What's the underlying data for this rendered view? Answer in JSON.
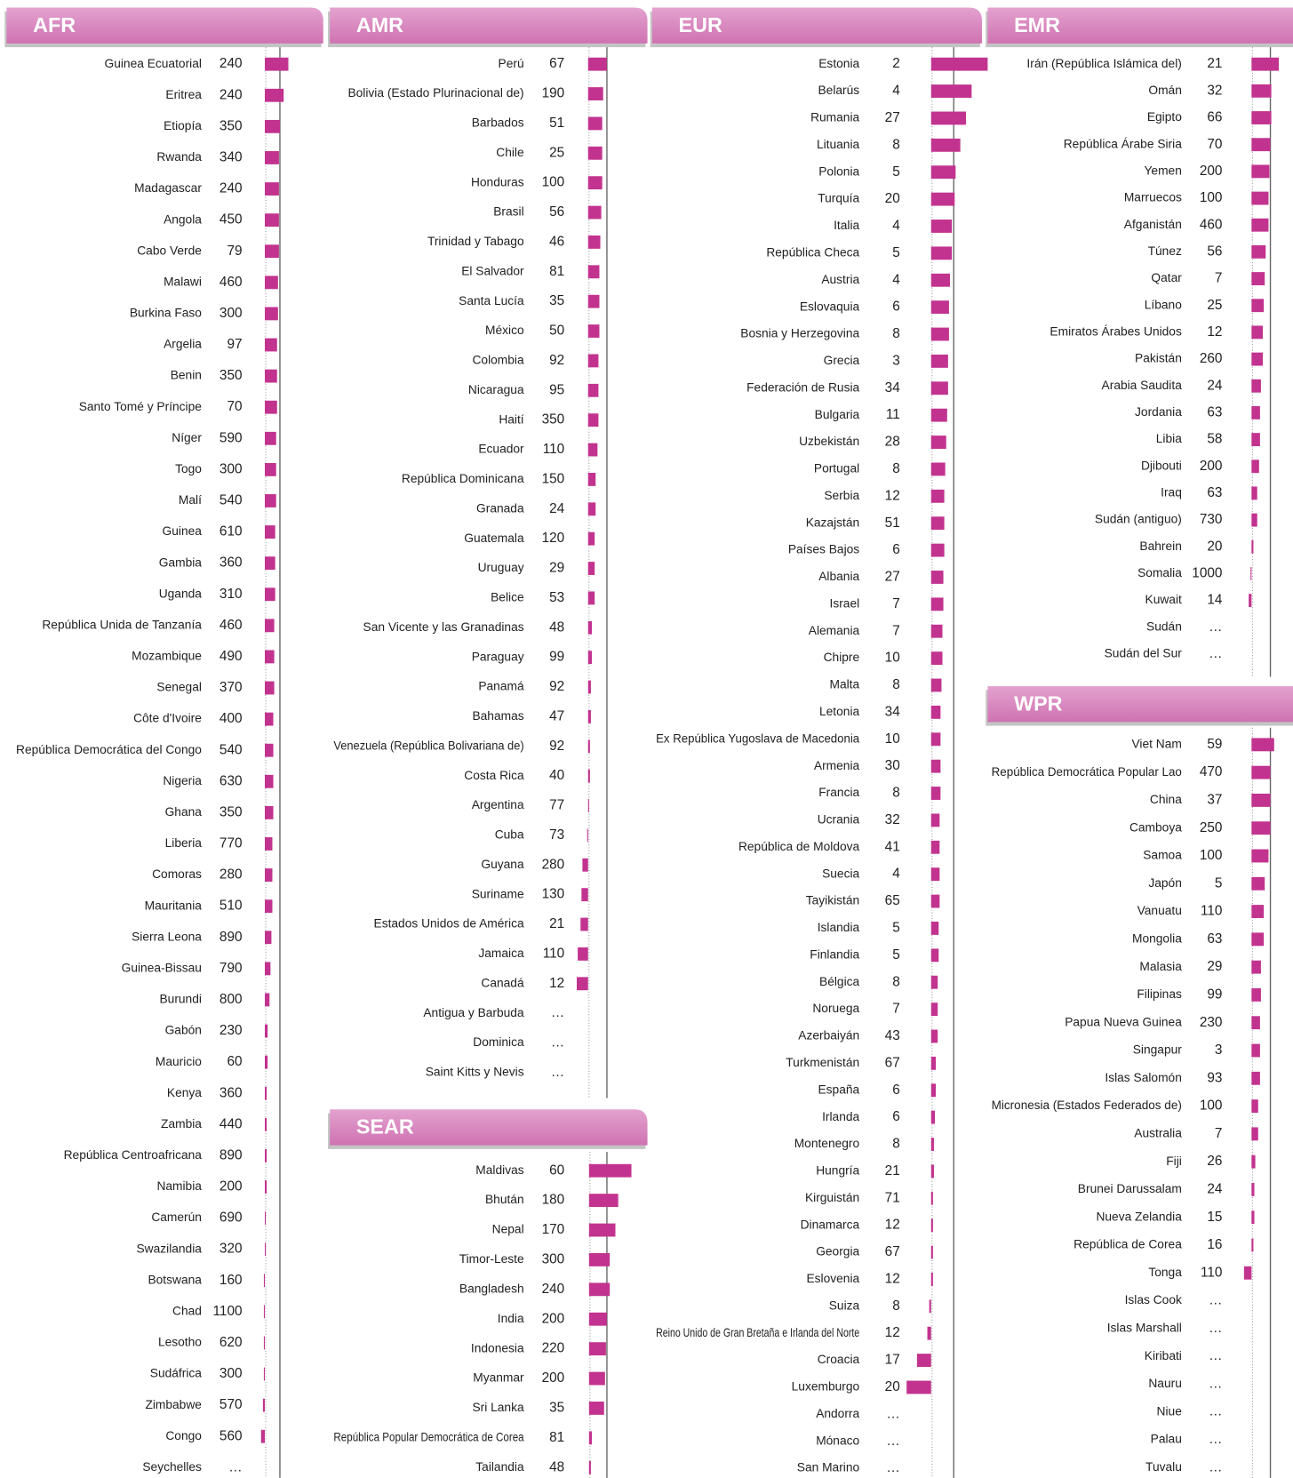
{
  "panels": [
    {
      "title": "AFR",
      "countries": [
        "Guinea Ecuatorial",
        "Eritrea",
        "Etiopía",
        "Rwanda",
        "Madagascar",
        "Angola",
        "Cabo Verde",
        "Malawi",
        "Burkina Faso",
        "Argelia",
        "Benin",
        "Santo Tomé y Príncipe",
        "Níger",
        "Togo",
        "Malí",
        "Guinea",
        "Gambia",
        "Uganda",
        "República Unida de Tanzanía",
        "Mozambique",
        "Senegal",
        "Côte d'Ivoire",
        "República Democrática del Congo",
        "Nigeria",
        "Ghana",
        "Liberia",
        "Comoras",
        "Mauritania",
        "Sierra Leona",
        "Guinea-Bissau",
        "Burundi",
        "Gabón",
        "Mauricio",
        "Kenya",
        "Zambia",
        "República Centroafricana",
        "Namibia",
        "Camerún",
        "Swazilandia",
        "Botswana",
        "Chad",
        "Lesotho",
        "Sudáfrica",
        "Zimbabwe",
        "Congo",
        "Seychelles"
      ],
      "values": [
        240,
        240,
        350,
        340,
        240,
        450,
        79,
        460,
        300,
        97,
        350,
        70,
        590,
        300,
        540,
        610,
        360,
        310,
        460,
        490,
        370,
        400,
        540,
        630,
        350,
        770,
        280,
        510,
        890,
        790,
        800,
        230,
        60,
        360,
        440,
        890,
        200,
        690,
        320,
        160,
        1100,
        620,
        300,
        570,
        560,
        "…"
      ],
      "bars": [
        25,
        20,
        16,
        15,
        15,
        15,
        15,
        14,
        14,
        13,
        13,
        13,
        12,
        12,
        12,
        11,
        11,
        11,
        10,
        10,
        10,
        9,
        9,
        9,
        9,
        8,
        8,
        8,
        7,
        6,
        5,
        3,
        3,
        2,
        2,
        2,
        2,
        1,
        1,
        -1,
        -1,
        -1,
        -1,
        -2,
        -4,
        null
      ]
    },
    {
      "title": "AMR",
      "countries": [
        "Perú",
        "Bolivia (Estado Plurinacional de)",
        "Barbados",
        "Chile",
        "Honduras",
        "Brasil",
        "Trinidad y Tabago",
        "El Salvador",
        "Santa Lucía",
        "México",
        "Colombia",
        "Nicaragua",
        "Haití",
        "Ecuador",
        "República Dominicana",
        "Granada",
        "Guatemala",
        "Uruguay",
        "Belice",
        "San Vicente y las Granadinas",
        "Paraguay",
        "Panamá",
        "Bahamas",
        "Venezuela (República Bolivariana de)",
        "Costa Rica",
        "Argentina",
        "Cuba",
        "Guyana",
        "Suriname",
        "Estados Unidos de América",
        "Jamaica",
        "Canadá",
        "Antigua y Barbuda",
        "Dominica",
        "Saint Kitts y Nevis"
      ],
      "values": [
        67,
        190,
        51,
        25,
        100,
        56,
        46,
        81,
        35,
        50,
        92,
        95,
        350,
        110,
        150,
        24,
        120,
        29,
        53,
        48,
        99,
        92,
        47,
        92,
        40,
        77,
        73,
        280,
        130,
        21,
        110,
        12,
        "…",
        "…",
        "…"
      ],
      "bars": [
        20,
        16,
        15,
        15,
        15,
        14,
        13,
        12,
        12,
        12,
        11,
        11,
        11,
        10,
        8,
        8,
        7,
        7,
        7,
        4,
        4,
        3,
        3,
        2,
        2,
        1,
        -1,
        -6,
        -7,
        -8,
        -11,
        -12,
        null,
        null,
        null
      ]
    },
    {
      "title": "EUR",
      "countries": [
        "Estonia",
        "Belarús",
        "Rumania",
        "Lituania",
        "Polonia",
        "Turquía",
        "Italia",
        "República Checa",
        "Austria",
        "Eslovaquia",
        "Bosnia y Herzegovina",
        "Grecia",
        "Federación de Rusia",
        "Bulgaria",
        "Uzbekistán",
        "Portugal",
        "Serbia",
        "Kazajstán",
        "Países Bajos",
        "Albania",
        "Israel",
        "Alemania",
        "Chipre",
        "Malta",
        "Letonia",
        "Ex República Yugoslava de Macedonia",
        "Armenia",
        "Francia",
        "Ucrania",
        "República de Moldova",
        "Suecia",
        "Tayikistán",
        "Islandia",
        "Finlandia",
        "Bélgica",
        "Noruega",
        "Azerbaiyán",
        "Turkmenistán",
        "España",
        "Irlanda",
        "Montenegro",
        "Hungría",
        "Kirguistán",
        "Dinamarca",
        "Georgia",
        "Eslovenia",
        "Suiza",
        "Reino Unido de Gran Bretaña e Irlanda del Norte",
        "Croacia",
        "Luxemburgo",
        "Andorra",
        "Mónaco",
        "San Marino"
      ],
      "values": [
        2,
        4,
        27,
        8,
        5,
        20,
        4,
        5,
        4,
        6,
        8,
        3,
        34,
        11,
        28,
        8,
        12,
        51,
        6,
        27,
        7,
        7,
        10,
        8,
        34,
        10,
        30,
        8,
        32,
        41,
        4,
        65,
        5,
        5,
        8,
        7,
        43,
        67,
        6,
        6,
        8,
        21,
        71,
        12,
        67,
        12,
        8,
        12,
        17,
        20,
        "…",
        "…",
        "…"
      ],
      "bars": [
        60,
        43,
        37,
        31,
        26,
        25,
        22,
        22,
        20,
        19,
        19,
        18,
        18,
        17,
        16,
        15,
        14,
        14,
        14,
        13,
        13,
        12,
        12,
        11,
        10,
        10,
        10,
        10,
        9,
        9,
        9,
        9,
        8,
        8,
        7,
        7,
        7,
        5,
        5,
        4,
        3,
        3,
        2,
        2,
        2,
        2,
        -2,
        -4,
        -15,
        -26,
        null,
        null,
        null
      ]
    },
    {
      "title": "EMR",
      "countries": [
        "Irán (República Islámica del)",
        "Omán",
        "Egipto",
        "República Árabe Siria",
        "Yemen",
        "Marruecos",
        "Afganistán",
        "Túnez",
        "Qatar",
        "Líbano",
        "Emiratos Árabes Unidos",
        "Pakistán",
        "Arabia Saudita",
        "Jordania",
        "Libia",
        "Djibouti",
        "Iraq",
        "Sudán (antiguo)",
        "Bahrein",
        "Somalia",
        "Kuwait",
        "Sudán",
        "Sudán del Sur"
      ],
      "values": [
        21,
        32,
        66,
        70,
        200,
        100,
        460,
        56,
        7,
        25,
        12,
        260,
        24,
        63,
        58,
        200,
        63,
        730,
        20,
        1000,
        14,
        "…",
        "…"
      ],
      "bars": [
        29,
        21,
        21,
        20,
        19,
        18,
        18,
        15,
        14,
        13,
        12,
        12,
        10,
        9,
        9,
        8,
        6,
        6,
        2,
        -1,
        -3,
        null,
        null
      ]
    },
    {
      "title": "SEAR",
      "countries": [
        "Maldivas",
        "Bhután",
        "Nepal",
        "Timor-Leste",
        "Bangladesh",
        "India",
        "Indonesia",
        "Myanmar",
        "Sri Lanka",
        "República Popular Democrática de Corea",
        "Tailandia"
      ],
      "values": [
        60,
        180,
        170,
        300,
        240,
        200,
        220,
        200,
        35,
        81,
        48
      ],
      "bars": [
        45,
        31,
        28,
        22,
        22,
        19,
        18,
        17,
        16,
        3,
        2
      ]
    },
    {
      "title": "WPR",
      "countries": [
        "Viet Nam",
        "República Democrática Popular Lao",
        "China",
        "Camboya",
        "Samoa",
        "Japón",
        "Vanuatu",
        "Mongolia",
        "Malasia",
        "Filipinas",
        "Papua Nueva Guinea",
        "Singapur",
        "Islas Salomón",
        "Micronesia (Estados Federados de)",
        "Australia",
        "Fiji",
        "Brunei Darussalam",
        "Nueva Zelandia",
        "República de Corea",
        "Tonga",
        "Islas Cook",
        "Islas Marshall",
        "Kiribati",
        "Nauru",
        "Niue",
        "Palau",
        "Tuvalu"
      ],
      "values": [
        59,
        470,
        37,
        250,
        100,
        5,
        110,
        63,
        29,
        99,
        230,
        3,
        93,
        100,
        7,
        26,
        24,
        15,
        16,
        110,
        "…",
        "…",
        "…",
        "…",
        "…",
        "…",
        "…"
      ],
      "bars": [
        24,
        20,
        20,
        20,
        18,
        14,
        13,
        13,
        10,
        10,
        9,
        9,
        9,
        7,
        7,
        4,
        3,
        3,
        2,
        -8,
        null,
        null,
        null,
        null,
        null,
        null,
        null
      ]
    }
  ]
}
